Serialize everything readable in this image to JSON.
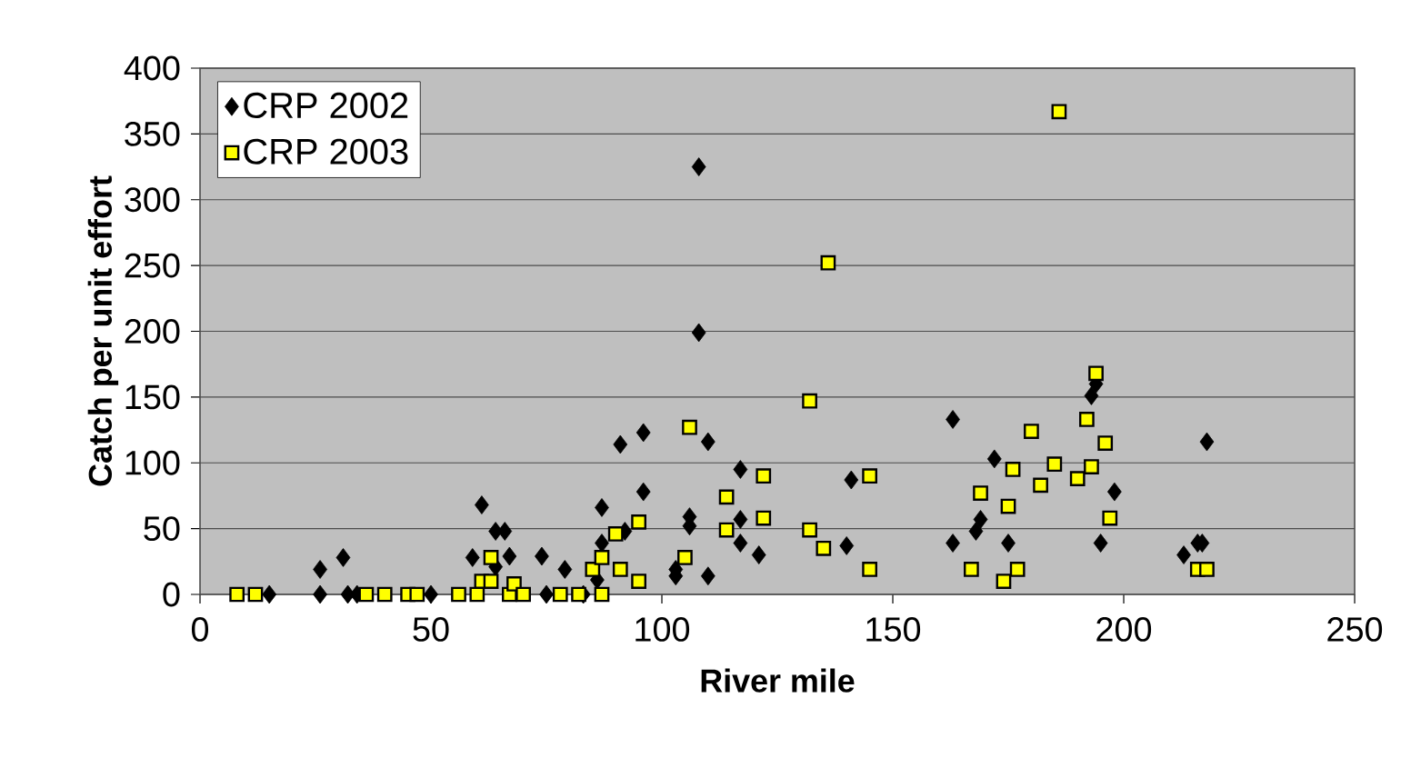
{
  "chart_data": {
    "type": "scatter",
    "xlabel": "River mile",
    "ylabel": "Catch per unit effort",
    "xlim": [
      0,
      250
    ],
    "ylim": [
      0,
      400
    ],
    "xticks": [
      0,
      50,
      100,
      150,
      200,
      250
    ],
    "yticks": [
      0,
      50,
      100,
      150,
      200,
      250,
      300,
      350,
      400
    ],
    "grid": "y",
    "legend": "top left",
    "series": [
      {
        "name": "CRP 2002",
        "color": "#000000",
        "marker": "diamond",
        "x": [
          15,
          26,
          26,
          31,
          32,
          34,
          50,
          59,
          61,
          64,
          64,
          66,
          67,
          74,
          75,
          79,
          83,
          86,
          87,
          87,
          91,
          92,
          96,
          96,
          103,
          103,
          106,
          106,
          108,
          108,
          110,
          110,
          117,
          117,
          117,
          121,
          140,
          141,
          163,
          163,
          168,
          169,
          172,
          175,
          193,
          194,
          195,
          198,
          213,
          216,
          217,
          218
        ],
        "values": [
          0,
          0,
          19,
          28,
          0,
          0,
          0,
          28,
          68,
          48,
          21,
          48,
          29,
          29,
          0,
          19,
          0,
          11,
          66,
          39,
          114,
          48,
          123,
          78,
          19,
          14,
          59,
          52,
          325,
          199,
          116,
          14,
          95,
          57,
          39,
          30,
          37,
          87,
          133,
          39,
          48,
          57,
          103,
          39,
          151,
          160,
          39,
          78,
          30,
          39,
          39,
          116
        ]
      },
      {
        "name": "CRP 2003",
        "color": "#ffff00",
        "marker": "square",
        "x": [
          8,
          12,
          36,
          40,
          45,
          47,
          56,
          60,
          61,
          63,
          63,
          67,
          68,
          70,
          78,
          82,
          85,
          87,
          87,
          90,
          91,
          95,
          95,
          105,
          106,
          114,
          114,
          122,
          122,
          132,
          132,
          135,
          136,
          145,
          145,
          167,
          169,
          174,
          175,
          176,
          177,
          180,
          182,
          185,
          186,
          190,
          192,
          193,
          194,
          196,
          197,
          216,
          218
        ],
        "values": [
          0,
          0,
          0,
          0,
          0,
          0,
          0,
          0,
          10,
          28,
          10,
          0,
          8,
          0,
          0,
          0,
          19,
          0,
          28,
          46,
          19,
          55,
          10,
          28,
          127,
          49,
          74,
          90,
          58,
          147,
          49,
          35,
          252,
          90,
          19,
          19,
          77,
          10,
          67,
          95,
          19,
          124,
          83,
          99,
          367,
          88,
          133,
          97,
          168,
          115,
          58,
          19,
          19
        ]
      }
    ]
  }
}
